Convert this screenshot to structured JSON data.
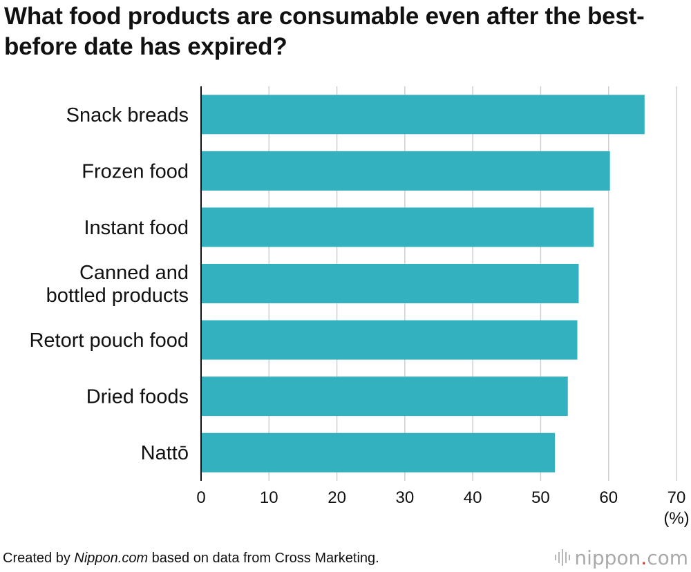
{
  "title": "What food products are consumable even after the best-before date has expired?",
  "footer": {
    "prefix": "Created by ",
    "source_name": "Nippon.com",
    "suffix": " based on data from Cross Marketing."
  },
  "brand": {
    "name_part1": "nippon",
    "dot": ".",
    "name_part2": "com"
  },
  "colors": {
    "bar": "#33b1bf",
    "grid": "#cfcfcf",
    "axis": "#111111",
    "brand_dot": "#d23a3a"
  },
  "chart_data": {
    "type": "bar",
    "orientation": "horizontal",
    "title": "What food products are consumable even after the best-before date has expired?",
    "categories": [
      [
        "Snack breads"
      ],
      [
        "Frozen food"
      ],
      [
        "Instant food"
      ],
      [
        "Canned and",
        "bottled products"
      ],
      [
        "Retort pouch food"
      ],
      [
        "Dried foods"
      ],
      [
        "Nattō"
      ]
    ],
    "values": [
      65.3,
      60.2,
      57.8,
      55.6,
      55.4,
      54.0,
      52.1
    ],
    "xlim": [
      0,
      70
    ],
    "xticks": [
      0,
      10,
      20,
      30,
      40,
      50,
      60,
      70
    ],
    "xunit": "(%)",
    "xlabel": "",
    "ylabel": "",
    "grid": true
  }
}
